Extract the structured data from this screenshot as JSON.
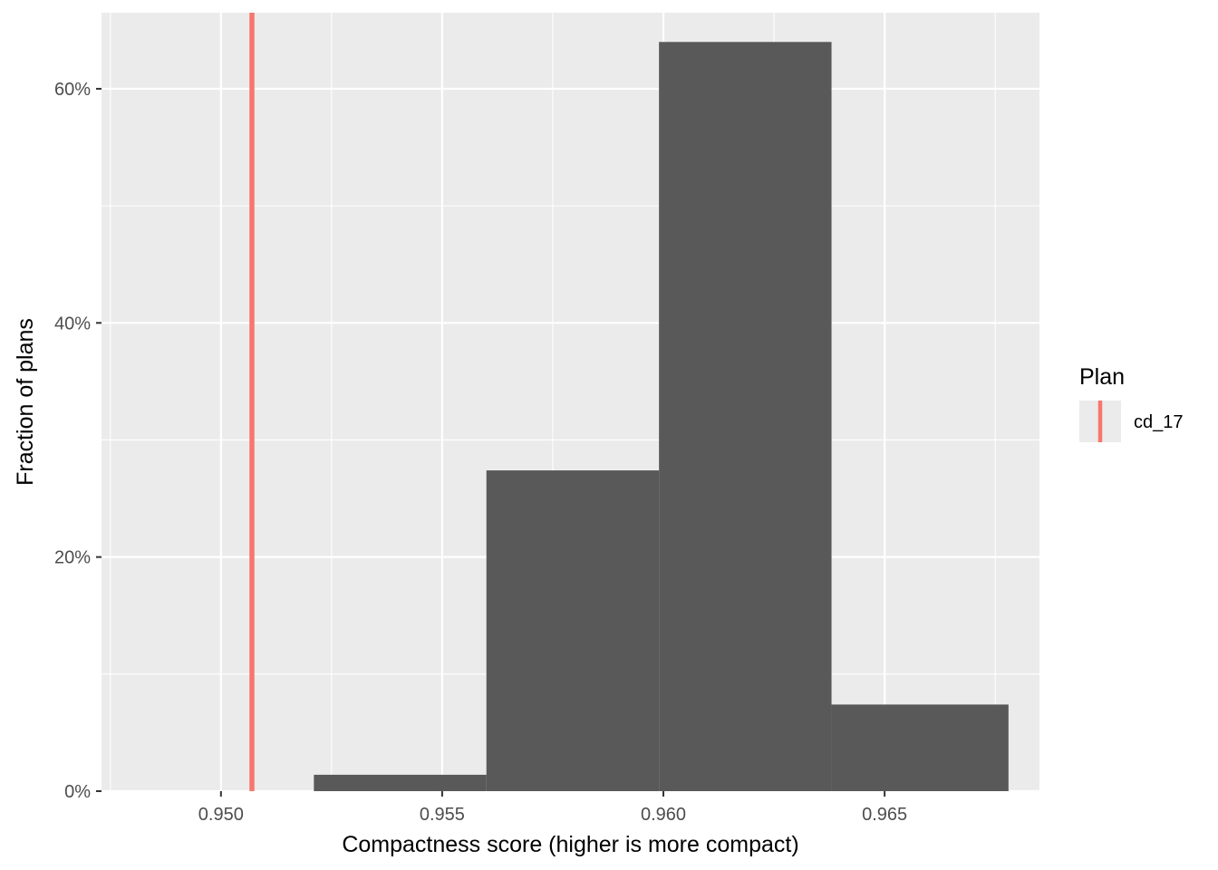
{
  "chart_data": {
    "type": "bar",
    "xlabel": "Compactness score (higher is more compact)",
    "ylabel": "Fraction of plans",
    "xlim": [
      0.9473,
      0.9685
    ],
    "ylim": [
      0,
      0.665
    ],
    "x_ticks": [
      0.95,
      0.955,
      0.96,
      0.965
    ],
    "x_tick_labels": [
      "0.950",
      "0.955",
      "0.960",
      "0.965"
    ],
    "y_ticks": [
      0,
      0.2,
      0.4,
      0.6
    ],
    "y_tick_labels": [
      "0%",
      "20%",
      "40%",
      "60%"
    ],
    "bins": [
      {
        "x0": 0.9521,
        "x1": 0.956,
        "value": 0.014
      },
      {
        "x0": 0.956,
        "x1": 0.9599,
        "value": 0.274
      },
      {
        "x0": 0.9599,
        "x1": 0.9638,
        "value": 0.64
      },
      {
        "x0": 0.9638,
        "x1": 0.9678,
        "value": 0.074
      }
    ],
    "bar_color": "#595959",
    "panel_color": "#ebebeb",
    "grid": true,
    "reference_line": {
      "x": 0.9507,
      "name": "cd_17",
      "color": "#f8766d"
    },
    "legend": {
      "title": "Plan",
      "entries": [
        "cd_17"
      ],
      "position": "right"
    }
  }
}
